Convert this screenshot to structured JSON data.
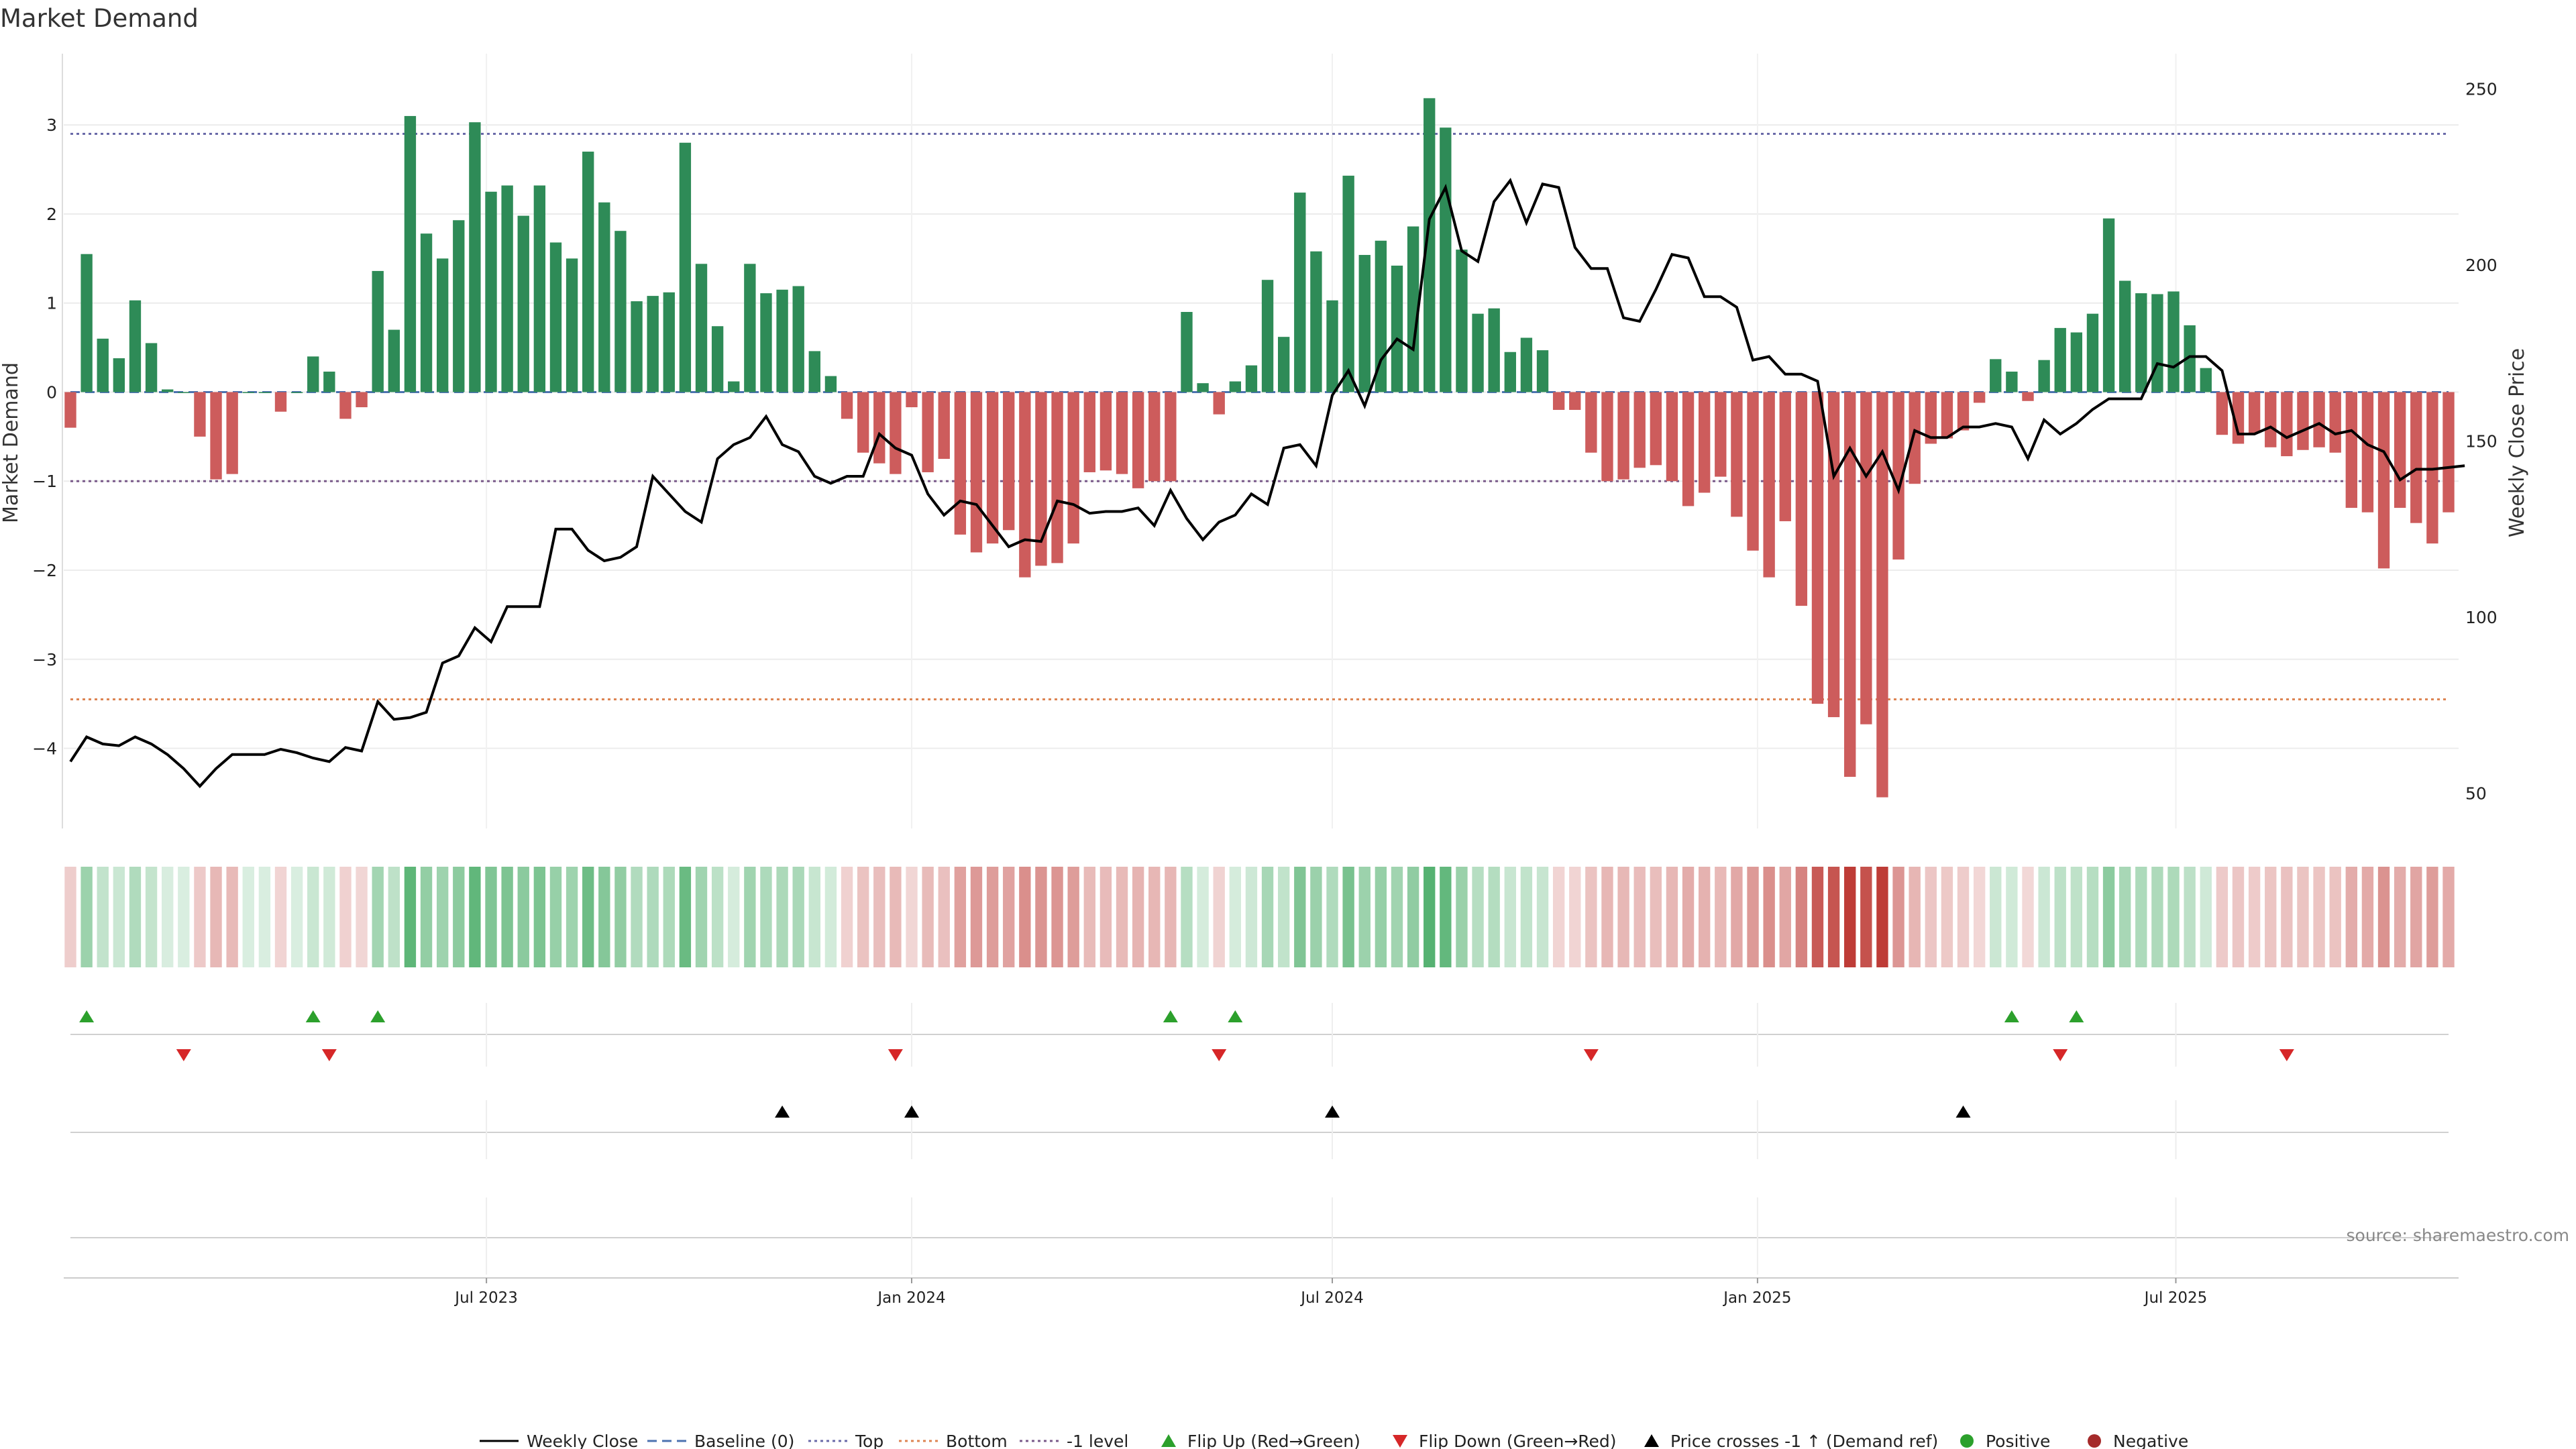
{
  "colors": {
    "positive": "#2e8b57",
    "negative": "#cd5c5c",
    "price_line": "#000000",
    "baseline": "#4c72b0",
    "top_level": "#6a6aa8",
    "bottom_level": "#dd8452",
    "minus_one_level": "#7a5a8a",
    "flip_up": "#2ca02c",
    "flip_down": "#d62728",
    "cross_marker": "#000000",
    "positive_dot": "#2ca02c",
    "negative_dot": "#a52a2a"
  },
  "chart_data": {
    "type": "bar",
    "title": "Market Demand",
    "ylabel_left": "Market Demand",
    "ylabel_right": "Weekly Close Price",
    "x_start": "2023-01-02",
    "x_end": "2025-10-27",
    "bar_interval_days": 7,
    "x_tick_labels": [
      {
        "date": "2023-07-01",
        "label": "Jul 2023"
      },
      {
        "date": "2024-01-01",
        "label": "Jan 2024"
      },
      {
        "date": "2024-07-01",
        "label": "Jul 2024"
      },
      {
        "date": "2025-01-01",
        "label": "Jan 2025"
      },
      {
        "date": "2025-07-01",
        "label": "Jul 2025"
      }
    ],
    "left_axis": {
      "ylim": [
        -4.9,
        3.8
      ],
      "ticks": [
        -4,
        -3,
        -2,
        -1,
        0,
        1,
        2,
        3
      ]
    },
    "right_axis": {
      "ylim": [
        40,
        260
      ],
      "ticks": [
        50,
        100,
        150,
        200,
        250
      ]
    },
    "reference_lines": {
      "top": 2.9,
      "bottom": -3.45,
      "minus_one": -1.0,
      "baseline": 0
    },
    "demand": [
      -0.4,
      1.55,
      0.6,
      0.38,
      1.03,
      0.55,
      0.03,
      0.0,
      -0.5,
      -0.98,
      -0.92,
      0.0,
      0.0,
      -0.22,
      0.0,
      0.4,
      0.23,
      -0.3,
      -0.17,
      1.36,
      0.7,
      3.1,
      1.78,
      1.5,
      1.93,
      3.03,
      2.25,
      2.32,
      1.98,
      2.32,
      1.68,
      1.5,
      2.7,
      2.13,
      1.81,
      1.02,
      1.08,
      1.12,
      2.8,
      1.44,
      0.74,
      0.12,
      1.44,
      1.11,
      1.15,
      1.19,
      0.46,
      0.18,
      -0.3,
      -0.68,
      -0.8,
      -0.92,
      -0.17,
      -0.9,
      -0.75,
      -1.6,
      -1.8,
      -1.7,
      -1.55,
      -2.08,
      -1.95,
      -1.92,
      -1.7,
      -0.9,
      -0.88,
      -0.92,
      -1.08,
      -1.0,
      -1.0,
      0.9,
      0.1,
      -0.25,
      0.12,
      0.3,
      1.26,
      0.62,
      2.24,
      1.58,
      1.03,
      2.43,
      1.54,
      1.7,
      1.42,
      1.86,
      3.3,
      2.97,
      1.6,
      0.88,
      0.94,
      0.45,
      0.61,
      0.47,
      -0.2,
      -0.2,
      -0.68,
      -1.0,
      -0.98,
      -0.85,
      -0.82,
      -1.0,
      -1.28,
      -1.13,
      -0.95,
      -1.4,
      -1.78,
      -2.08,
      -1.45,
      -2.4,
      -3.5,
      -3.65,
      -4.32,
      -3.73,
      -4.55,
      -1.88,
      -1.03,
      -0.58,
      -0.52,
      -0.43,
      -0.12,
      0.37,
      0.23,
      -0.1,
      0.36,
      0.72,
      0.67,
      0.88,
      1.95,
      1.25,
      1.11,
      1.1,
      1.13,
      0.75,
      0.27,
      -0.48,
      -0.58,
      -0.46,
      -0.62,
      -0.72,
      -0.65,
      -0.62,
      -0.68,
      -1.3,
      -1.35,
      -1.98,
      -1.3,
      -1.47,
      -1.7,
      -1.35
    ],
    "price": [
      59,
      66,
      64,
      63.5,
      66,
      64,
      61,
      57,
      52,
      57,
      61,
      61,
      61,
      62.5,
      61.5,
      60,
      59,
      63,
      62,
      76,
      71,
      71.5,
      73,
      87,
      89,
      97,
      93,
      103,
      103,
      103,
      125,
      125,
      119,
      116,
      117,
      120,
      140,
      135,
      130,
      127,
      145,
      149,
      151,
      157,
      149,
      147,
      140,
      138,
      140,
      140,
      152,
      148,
      146,
      135,
      129,
      133,
      132,
      126,
      120,
      122,
      121.5,
      133,
      132,
      129.5,
      130,
      130,
      131,
      126,
      136,
      128,
      122,
      127,
      129,
      135,
      132,
      148,
      149,
      143,
      163,
      170,
      160,
      173,
      179,
      176,
      213,
      222,
      204,
      201,
      218,
      224,
      212,
      223,
      222,
      205,
      199,
      199,
      185,
      184,
      193,
      203,
      202,
      191,
      191,
      188,
      173,
      174,
      169,
      169,
      167,
      140,
      148,
      140,
      147,
      136,
      153,
      151,
      151,
      154,
      154,
      155,
      154,
      145,
      156,
      152,
      155,
      159,
      162,
      162,
      162,
      172,
      171,
      174,
      174,
      170,
      152,
      152,
      154,
      151,
      153,
      155,
      152,
      153,
      149,
      147,
      139,
      142,
      142,
      142.5,
      143
    ]
  },
  "strip_labels": {
    "flips": [
      {
        "date": "2023-01-09",
        "direction": "up"
      },
      {
        "date": "2023-02-20",
        "direction": "down"
      },
      {
        "date": "2023-04-17",
        "direction": "up"
      },
      {
        "date": "2023-04-24",
        "direction": "down"
      },
      {
        "date": "2023-05-15",
        "direction": "up"
      },
      {
        "date": "2023-12-25",
        "direction": "down"
      },
      {
        "date": "2024-04-22",
        "direction": "up"
      },
      {
        "date": "2024-05-13",
        "direction": "down"
      },
      {
        "date": "2024-05-20",
        "direction": "up"
      },
      {
        "date": "2024-10-21",
        "direction": "down"
      },
      {
        "date": "2025-04-21",
        "direction": "up"
      },
      {
        "date": "2025-05-12",
        "direction": "down"
      },
      {
        "date": "2025-05-19",
        "direction": "up"
      },
      {
        "date": "2025-08-18",
        "direction": "down"
      }
    ],
    "crosses": [
      "2023-11-06",
      "2024-01-01",
      "2024-07-01",
      "2025-03-31"
    ]
  },
  "legend": [
    {
      "type": "line",
      "label": "Weekly Close"
    },
    {
      "type": "dashed",
      "label": "Baseline (0)"
    },
    {
      "type": "dotted-top",
      "label": "Top"
    },
    {
      "type": "dotted-bottom",
      "label": "Bottom"
    },
    {
      "type": "dotted-minus",
      "label": "-1 level"
    },
    {
      "type": "tri-up",
      "label": "Flip Up (Red→Green)"
    },
    {
      "type": "tri-down",
      "label": "Flip Down (Green→Red)"
    },
    {
      "type": "tri-cross",
      "label": "Price crosses -1 ↑ (Demand ref)"
    },
    {
      "type": "dot-pos",
      "label": "Positive"
    },
    {
      "type": "dot-neg",
      "label": "Negative"
    }
  ],
  "source_text": "source: sharemaestro.com"
}
